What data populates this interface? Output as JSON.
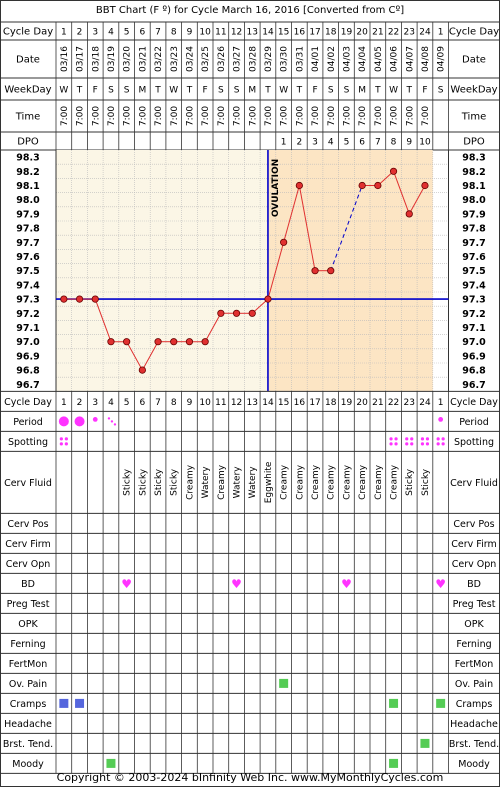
{
  "title": "BBT Chart (F º) for Cycle March 16, 2016  [Converted from Cº]",
  "footer": "Copyright © 2003-2024 bInfinity Web Inc.     www.MyMonthlyCycles.com",
  "labels": {
    "cycle_day": "Cycle Day",
    "date": "Date",
    "weekday": "WeekDay",
    "time": "Time",
    "dpo": "DPO",
    "ovulation": "OVULATION"
  },
  "cycle_days": [
    "1",
    "2",
    "3",
    "4",
    "5",
    "6",
    "7",
    "8",
    "9",
    "10",
    "11",
    "12",
    "13",
    "14",
    "15",
    "16",
    "17",
    "18",
    "19",
    "20",
    "21",
    "22",
    "23",
    "24",
    "1"
  ],
  "dates": [
    "03/16",
    "03/17",
    "03/18",
    "03/19",
    "03/20",
    "03/21",
    "03/22",
    "03/23",
    "03/24",
    "03/25",
    "03/26",
    "03/27",
    "03/28",
    "03/29",
    "03/30",
    "03/31",
    "04/01",
    "04/02",
    "04/03",
    "04/04",
    "04/05",
    "04/06",
    "04/07",
    "04/08",
    "04/09"
  ],
  "weekdays": [
    "W",
    "T",
    "F",
    "S",
    "S",
    "M",
    "T",
    "W",
    "T",
    "F",
    "S",
    "S",
    "M",
    "T",
    "W",
    "T",
    "F",
    "S",
    "S",
    "M",
    "T",
    "W",
    "T",
    "F",
    "S"
  ],
  "times": [
    "7:00",
    "7:00",
    "7:00",
    "7:00",
    "7:00",
    "7:00",
    "7:00",
    "7:00",
    "7:00",
    "7:00",
    "7:00",
    "7:00",
    "7:00",
    "7:00",
    "7:00",
    "7:00",
    "7:00",
    "7:00",
    "7:00",
    "7:00",
    "7:00",
    "7:00",
    "7:00",
    "7:00",
    ""
  ],
  "dpo": [
    "",
    "",
    "",
    "",
    "",
    "",
    "",
    "",
    "",
    "",
    "",
    "",
    "",
    "",
    "1",
    "2",
    "3",
    "4",
    "5",
    "6",
    "7",
    "8",
    "9",
    "10",
    ""
  ],
  "colors": {
    "grid": "#333333",
    "fertile_bg": "#fbf6e6",
    "luteal_bg": "#fce5c4",
    "temp_line": "#e03030",
    "coverline": "#0000cc",
    "period": "#ff33ff",
    "square": "#55cc55",
    "cramp": "#5566dd"
  },
  "chart_data": {
    "type": "line",
    "title": "BBT Chart (F º) for Cycle March 16, 2016  [Converted from Cº]",
    "x": [
      1,
      2,
      3,
      4,
      5,
      6,
      7,
      8,
      9,
      10,
      11,
      12,
      13,
      14,
      15,
      16,
      17,
      18,
      19,
      20,
      21,
      22,
      23,
      24,
      25
    ],
    "y_ticks": [
      "98.3",
      "98.2",
      "98.1",
      "98.0",
      "97.9",
      "97.8",
      "97.7",
      "97.6",
      "97.5",
      "97.4",
      "97.3",
      "97.2",
      "97.1",
      "97.0",
      "96.9",
      "96.8",
      "96.7"
    ],
    "ylim": [
      96.7,
      98.3
    ],
    "series": [
      {
        "values": [
          97.3,
          97.3,
          97.3,
          97.0,
          97.0,
          96.8,
          97.0,
          97.0,
          97.0,
          97.0,
          97.2,
          97.2,
          97.2,
          97.3,
          97.7,
          98.1,
          97.5,
          97.5,
          null,
          98.1,
          98.1,
          98.2,
          97.9,
          98.1,
          null
        ]
      }
    ],
    "coverline": 97.3,
    "ovulation_day": 14
  },
  "rows": {
    "period": {
      "label": "Period",
      "marks": [
        [
          "big",
          1
        ],
        [
          "big",
          2
        ],
        [
          "small",
          3
        ],
        [
          "dots",
          4
        ]
      ],
      "extra": [
        [
          "small",
          25
        ]
      ]
    },
    "spotting": {
      "label": "Spotting",
      "days": [
        1,
        22,
        23,
        24,
        25
      ]
    },
    "cerv_fluid": {
      "label": "Cerv Fluid",
      "values": [
        "",
        "",
        "",
        "",
        "Sticky",
        "Sticky",
        "Sticky",
        "Sticky",
        "Creamy",
        "Watery",
        "Creamy",
        "Watery",
        "Watery",
        "Eggwhite",
        "Creamy",
        "Creamy",
        "Creamy",
        "Creamy",
        "Creamy",
        "Creamy",
        "Creamy",
        "Creamy",
        "Sticky",
        "Sticky",
        ""
      ]
    },
    "cerv_pos": {
      "label": "Cerv Pos"
    },
    "cerv_firm": {
      "label": "Cerv Firm"
    },
    "cerv_opn": {
      "label": "Cerv Opn"
    },
    "bd": {
      "label": "BD",
      "glyph": "♥",
      "days": [
        5,
        12,
        19,
        25
      ]
    },
    "preg_test": {
      "label": "Preg Test"
    },
    "opk": {
      "label": "OPK"
    },
    "ferning": {
      "label": "Ferning"
    },
    "fertmon": {
      "label": "FertMon"
    },
    "ov_pain": {
      "label": "Ov. Pain",
      "green": [
        15
      ]
    },
    "cramps": {
      "label": "Cramps",
      "blue": [
        1,
        2
      ],
      "green": [
        22,
        25
      ]
    },
    "headache": {
      "label": "Headache"
    },
    "brst_tend": {
      "label": "Brst. Tend.",
      "green": [
        24
      ]
    },
    "moody": {
      "label": "Moody",
      "green": [
        4,
        22
      ]
    }
  }
}
